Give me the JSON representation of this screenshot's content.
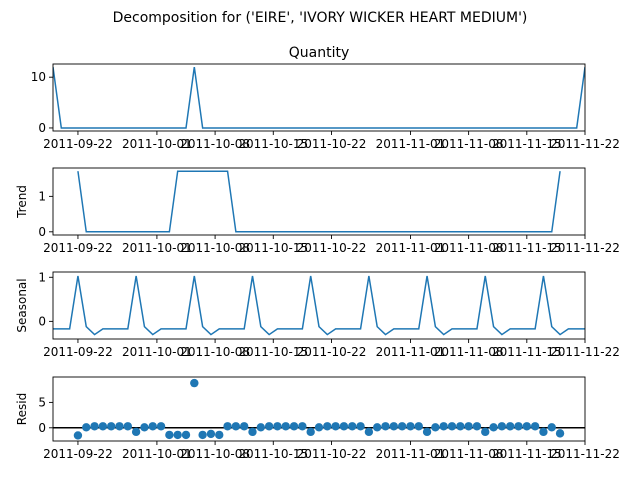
{
  "figure": {
    "suptitle": "Decomposition for ('EIRE', 'IVORY WICKER HEART MEDIUM')",
    "x_tick_labels": [
      "2011-09-22",
      "2011-10-01",
      "2011-10-08",
      "2011-10-15",
      "2011-10-22",
      "2011-11-01",
      "2011-11-08",
      "2011-11-15",
      "2011-11-22"
    ]
  },
  "chart_data": [
    {
      "type": "line",
      "title": "Quantity",
      "ylabel": "",
      "ylim": [
        -0.6,
        12.6
      ],
      "yticks": [
        0,
        10
      ],
      "color": "#1f77b4",
      "x": [
        0,
        1,
        2,
        3,
        4,
        5,
        6,
        7,
        8,
        9,
        10,
        11,
        12,
        13,
        14,
        15,
        16,
        17,
        18,
        19,
        20,
        21,
        22,
        23,
        24,
        25,
        26,
        27,
        28,
        29,
        30,
        31,
        32,
        33,
        34,
        35,
        36,
        37,
        38,
        39,
        40,
        41,
        42,
        43,
        44,
        45,
        46,
        47,
        48,
        49,
        50,
        51,
        52,
        53,
        54,
        55,
        56,
        57,
        58,
        59,
        60,
        61,
        62,
        63,
        64
      ],
      "values": [
        12,
        0,
        0,
        0,
        0,
        0,
        0,
        0,
        0,
        0,
        0,
        0,
        0,
        0,
        0,
        0,
        0,
        12,
        0,
        0,
        0,
        0,
        0,
        0,
        0,
        0,
        0,
        0,
        0,
        0,
        0,
        0,
        0,
        0,
        0,
        0,
        0,
        0,
        0,
        0,
        0,
        0,
        0,
        0,
        0,
        0,
        0,
        0,
        0,
        0,
        0,
        0,
        0,
        0,
        0,
        0,
        0,
        0,
        0,
        0,
        0,
        0,
        0,
        0,
        12
      ]
    },
    {
      "type": "line",
      "title": "",
      "ylabel": "Trend",
      "ylim": [
        -0.09,
        1.8
      ],
      "yticks": [
        0,
        1
      ],
      "color": "#1f77b4",
      "x": [
        3,
        4,
        5,
        6,
        7,
        8,
        9,
        10,
        11,
        12,
        13,
        14,
        15,
        16,
        17,
        18,
        19,
        20,
        21,
        22,
        23,
        24,
        25,
        26,
        27,
        28,
        29,
        30,
        31,
        32,
        33,
        34,
        35,
        36,
        37,
        38,
        39,
        40,
        41,
        42,
        43,
        44,
        45,
        46,
        47,
        48,
        49,
        50,
        51,
        52,
        53,
        54,
        55,
        56,
        57,
        58,
        59,
        60,
        61
      ],
      "values": [
        1.71,
        0,
        0,
        0,
        0,
        0,
        0,
        0,
        0,
        0,
        0,
        0,
        1.71,
        1.71,
        1.71,
        1.71,
        1.71,
        1.71,
        1.71,
        0,
        0,
        0,
        0,
        0,
        0,
        0,
        0,
        0,
        0,
        0,
        0,
        0,
        0,
        0,
        0,
        0,
        0,
        0,
        0,
        0,
        0,
        0,
        0,
        0,
        0,
        0,
        0,
        0,
        0,
        0,
        0,
        0,
        0,
        0,
        0,
        0,
        0,
        0,
        1.71
      ]
    },
    {
      "type": "line",
      "title": "",
      "ylabel": "Seasonal",
      "ylim": [
        -0.4,
        1.12
      ],
      "yticks": [
        0,
        1
      ],
      "color": "#1f77b4",
      "x": [
        0,
        1,
        2,
        3,
        4,
        5,
        6,
        7,
        8,
        9,
        10,
        11,
        12,
        13,
        14,
        15,
        16,
        17,
        18,
        19,
        20,
        21,
        22,
        23,
        24,
        25,
        26,
        27,
        28,
        29,
        30,
        31,
        32,
        33,
        34,
        35,
        36,
        37,
        38,
        39,
        40,
        41,
        42,
        43,
        44,
        45,
        46,
        47,
        48,
        49,
        49,
        50,
        51,
        52,
        53,
        54,
        55,
        56,
        57,
        58,
        59,
        60,
        61,
        62,
        63,
        64
      ],
      "values": [
        -0.17,
        -0.17,
        -0.17,
        1.03,
        -0.12,
        -0.3,
        -0.17,
        -0.17,
        -0.17,
        -0.17,
        1.03,
        -0.12,
        -0.3,
        -0.17,
        -0.17,
        -0.17,
        -0.17,
        1.03,
        -0.12,
        -0.3,
        -0.17,
        -0.17,
        -0.17,
        -0.17,
        1.03,
        -0.12,
        -0.3,
        -0.17,
        -0.17,
        -0.17,
        -0.17,
        1.03,
        -0.12,
        -0.3,
        -0.17,
        -0.17,
        -0.17,
        -0.17,
        1.03,
        -0.12,
        -0.3,
        -0.17,
        -0.17,
        -0.17,
        -0.17,
        1.03,
        -0.12,
        -0.3,
        -0.17,
        -0.17,
        -0.17,
        -0.17,
        -0.17,
        1.03,
        -0.12,
        -0.3,
        -0.17,
        -0.17,
        -0.17,
        -0.17,
        1.03,
        -0.12,
        -0.3,
        -0.17,
        -0.17,
        -0.17
      ]
    },
    {
      "type": "scatter",
      "title": "",
      "ylabel": "Resid",
      "ylim": [
        -2.6,
        10.0
      ],
      "yticks": [
        0,
        5
      ],
      "baseline": 0,
      "color": "#1f77b4",
      "x": [
        3,
        4,
        5,
        6,
        7,
        8,
        9,
        10,
        11,
        12,
        13,
        14,
        15,
        16,
        17,
        18,
        19,
        20,
        21,
        22,
        23,
        24,
        25,
        26,
        27,
        28,
        29,
        30,
        31,
        32,
        33,
        34,
        35,
        36,
        37,
        38,
        39,
        40,
        41,
        42,
        43,
        44,
        45,
        46,
        47,
        48,
        49,
        50,
        51,
        52,
        53,
        54,
        55,
        56,
        57,
        58,
        59,
        60,
        61
      ],
      "values": [
        -1.5,
        0.1,
        0.3,
        0.3,
        0.3,
        0.3,
        0.3,
        -0.8,
        0.1,
        0.3,
        0.3,
        -1.4,
        -1.4,
        -1.4,
        8.8,
        -1.4,
        -1.2,
        -1.4,
        0.3,
        0.3,
        0.3,
        -0.8,
        0.1,
        0.3,
        0.3,
        0.3,
        0.3,
        0.3,
        -0.8,
        0.1,
        0.3,
        0.3,
        0.3,
        0.3,
        0.3,
        -0.8,
        0.1,
        0.3,
        0.3,
        0.3,
        0.3,
        0.3,
        -0.8,
        0.1,
        0.3,
        0.3,
        0.3,
        0.3,
        0.3,
        -0.8,
        0.1,
        0.3,
        0.3,
        0.3,
        0.3,
        0.3,
        -0.8,
        0.1,
        -1.1
      ]
    }
  ]
}
